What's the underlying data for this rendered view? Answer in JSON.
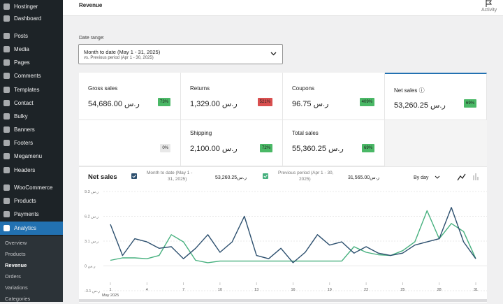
{
  "sidebar": {
    "items": [
      "Hostinger",
      "Dashboard",
      "Posts",
      "Media",
      "Pages",
      "Comments",
      "Templates",
      "Contact",
      "Bulky",
      "Banners",
      "Footers",
      "Megamenu",
      "Headers",
      "WooCommerce",
      "Products",
      "Payments",
      "Analytics"
    ],
    "active": 16,
    "submenu": [
      "Overview",
      "Products",
      "Revenue",
      "Orders",
      "Variations",
      "Categories"
    ],
    "submenu_active": 2
  },
  "header": {
    "title": "Revenue",
    "activity": "Activity"
  },
  "date_range": {
    "label": "Date range:",
    "value": "Month to date (May 1 - 31, 2025)",
    "compare": "vs. Previous period (Apr 1 - 30, 2025)"
  },
  "summary": [
    {
      "label": "Gross sales",
      "value": "54,686.00 ر.س",
      "delta": "73%",
      "color": "#4ab866"
    },
    {
      "label": "Returns",
      "value": "1,329.00 ر.س",
      "delta": "521%",
      "color": "#d94f4f"
    },
    {
      "label": "Coupons",
      "value": "96.75 ر.س",
      "delta": "409%",
      "color": "#4ab866"
    },
    {
      "label": "Net sales ⓘ",
      "value": "53,260.25 ر.س",
      "delta": "69%",
      "color": "#4ab866",
      "selected": true
    },
    {
      "delta": "0%",
      "color": "#e8e8e8"
    },
    {
      "label": "Shipping",
      "value": "2,100.00 ر.س",
      "delta": "72%",
      "color": "#4ab866"
    },
    {
      "label": "Total sales",
      "value": "55,360.25 ر.س",
      "delta": "69%",
      "color": "#4ab866"
    }
  ],
  "chart_data": {
    "type": "line",
    "title": "Net sales",
    "interval": "By day",
    "x_note": "May 2025",
    "categories": [
      "1",
      null,
      null,
      "4",
      null,
      null,
      "7",
      null,
      null,
      "10",
      null,
      null,
      "13",
      null,
      null,
      "16",
      null,
      null,
      "19",
      null,
      null,
      "22",
      null,
      null,
      "25",
      null,
      null,
      "28",
      null,
      null,
      "31"
    ],
    "series": [
      {
        "name": "Month to date (May 1 - 31, 2025)",
        "total": "53,260.25ر.س",
        "color": "#2c4f6e",
        "values": [
          5.2,
          1.3,
          3.4,
          3.0,
          2.2,
          2.4,
          0.9,
          2.2,
          3.9,
          1.7,
          3.0,
          6.2,
          1.3,
          0.9,
          2.2,
          0.4,
          1.7,
          3.9,
          2.6,
          3.0,
          1.6,
          2.4,
          1.6,
          1.3,
          1.6,
          2.6,
          3.0,
          3.4,
          7.3,
          3.0,
          0.9
        ]
      },
      {
        "name": "Previous period (Apr 1 - 30, 2025)",
        "total": "31,565.00ر.س",
        "color": "#46b07e",
        "values": [
          0.7,
          1.0,
          1.0,
          0.9,
          1.3,
          3.9,
          3.0,
          0.7,
          0.4,
          0.6,
          0.6,
          0.6,
          0.6,
          0.6,
          0.6,
          0.6,
          0.6,
          0.6,
          0.6,
          0.6,
          2.4,
          1.7,
          1.4,
          1.3,
          1.9,
          3.0,
          6.9,
          3.4,
          5.3,
          4.3,
          0.9
        ]
      }
    ],
    "ylim": [
      -3.1,
      9.3
    ],
    "yticks": [
      {
        "value": 9.3,
        "label": "9.3 ر.س"
      },
      {
        "value": 6.2,
        "label": "6.2 ر.س"
      },
      {
        "value": 3.1,
        "label": "3.1 ر.س"
      },
      {
        "value": 0,
        "label": "0 ر.س"
      },
      {
        "value": -3.1,
        "label": "-3.1 ر.س"
      }
    ],
    "grid": true
  }
}
